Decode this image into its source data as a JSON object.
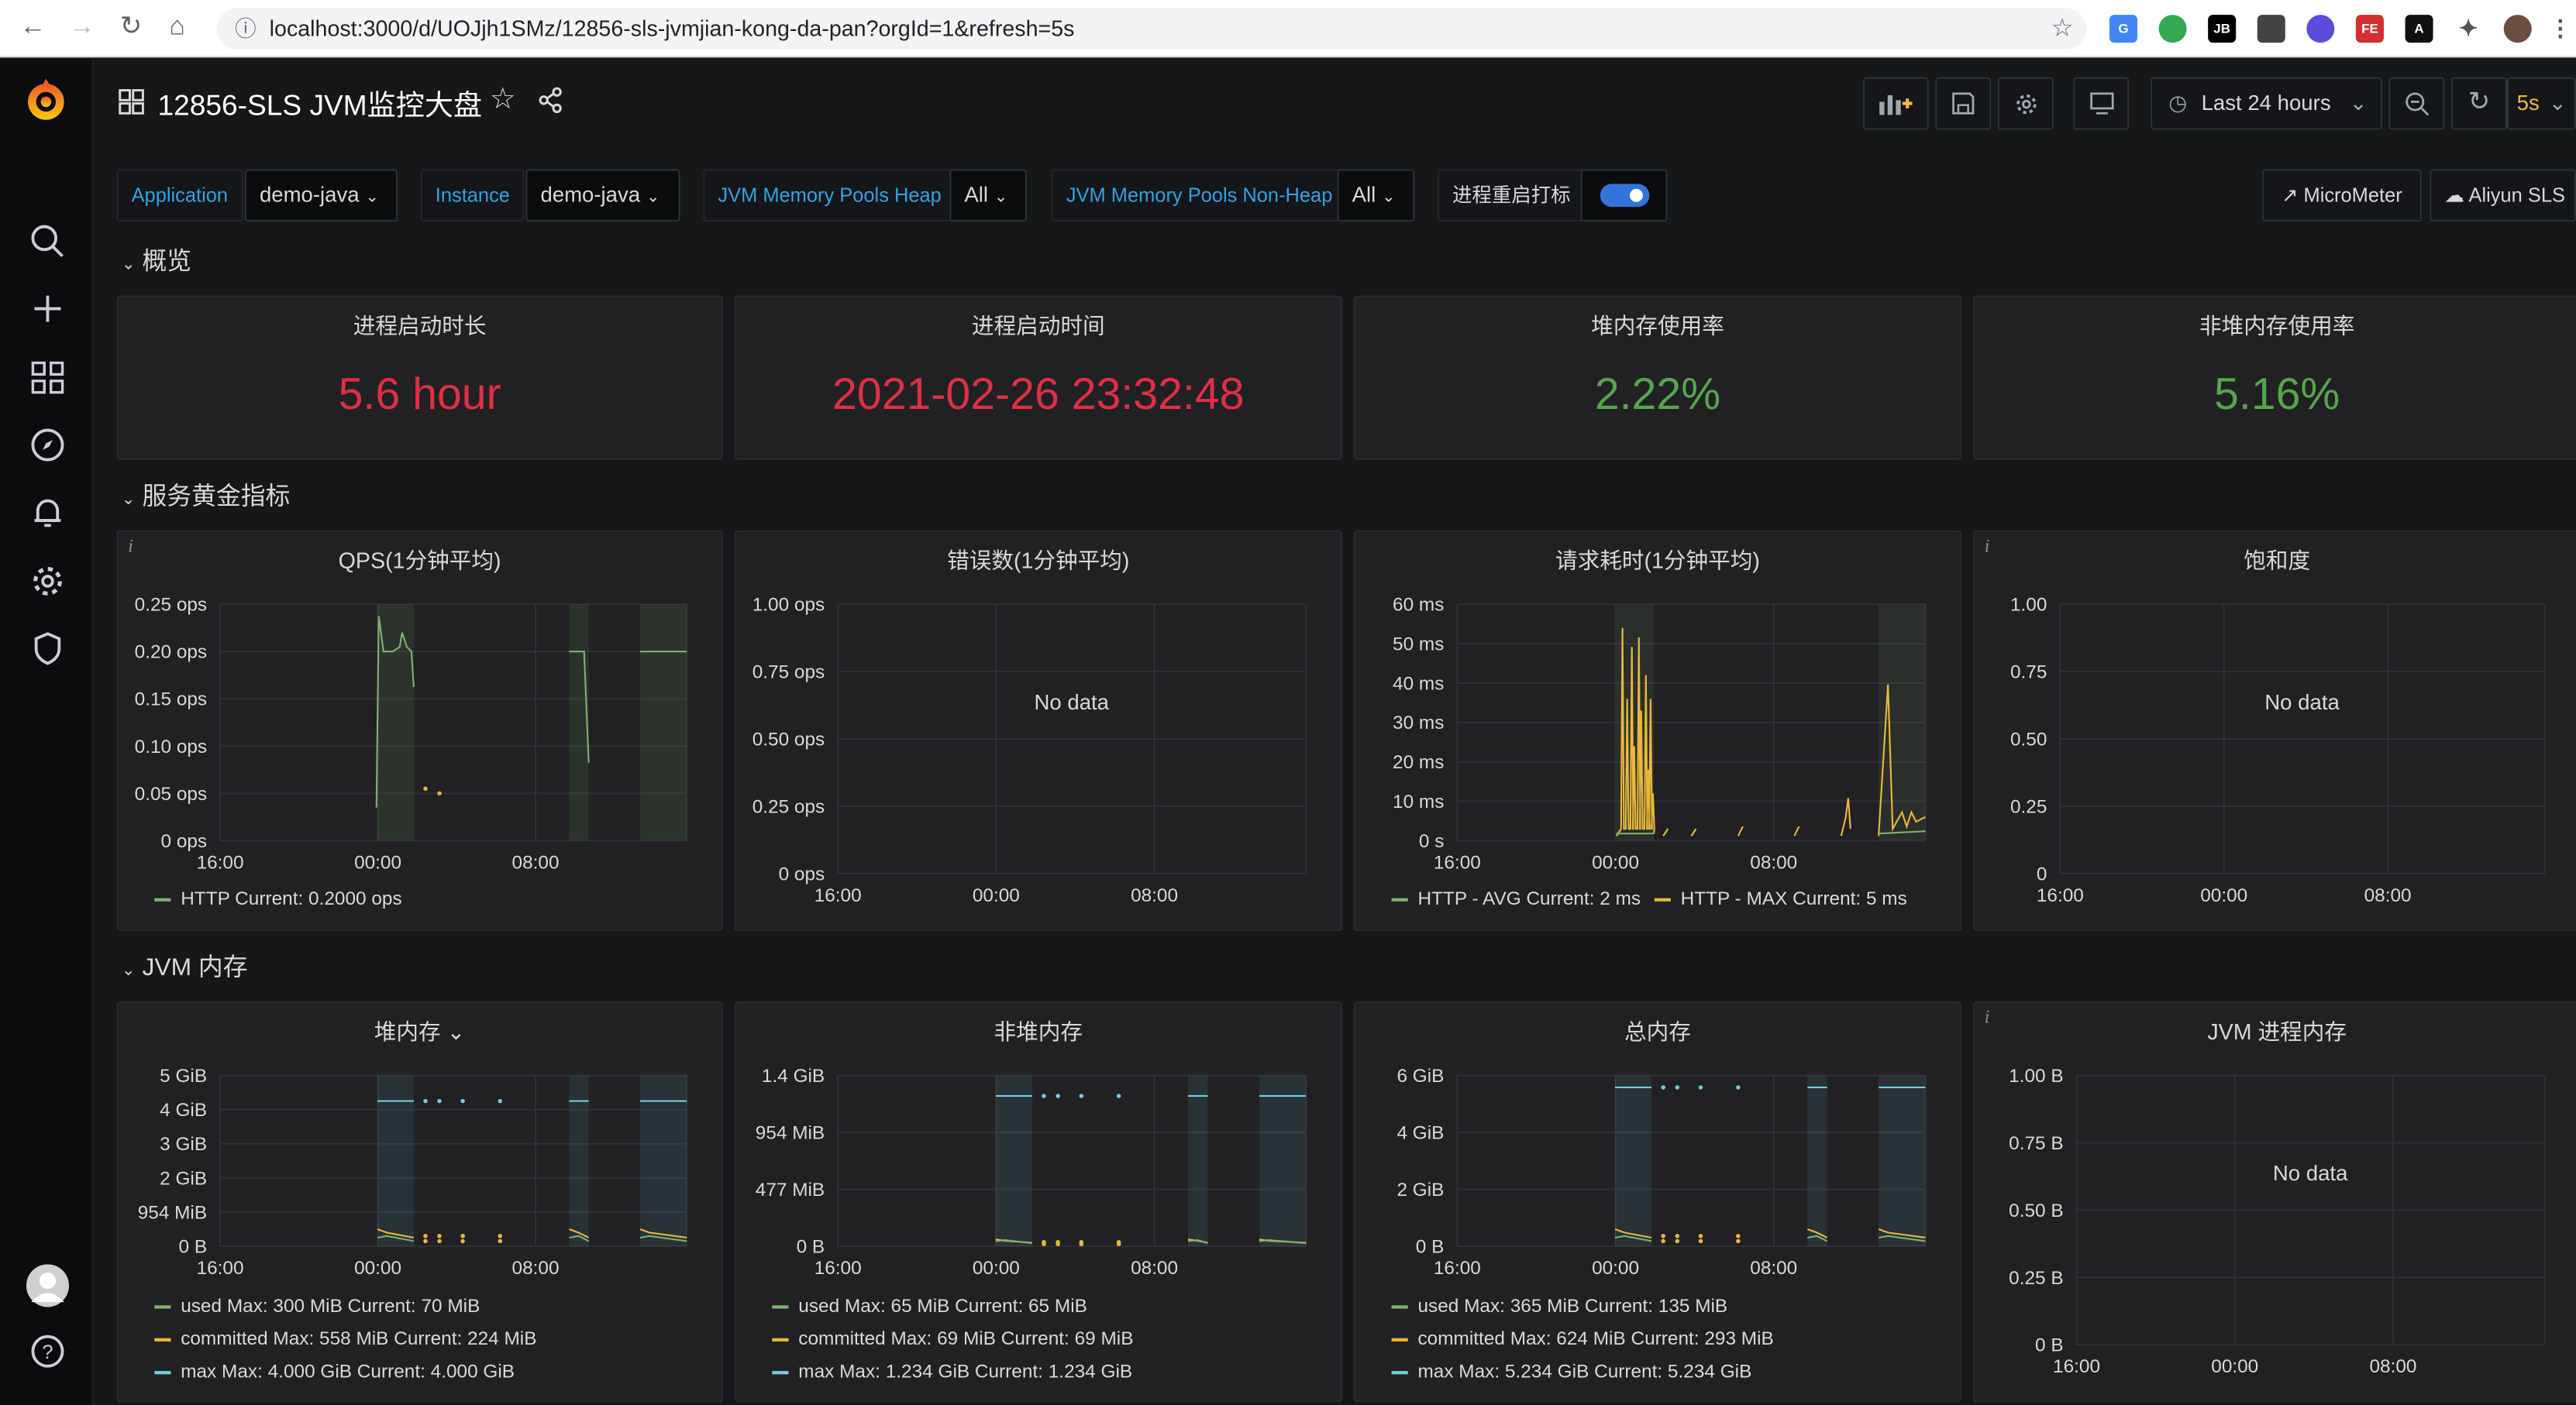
{
  "browser": {
    "url": "localhost:3000/d/UOJjh1SMz/12856-sls-jvmjian-kong-da-pan?orgId=1&refresh=5s"
  },
  "dashboard": {
    "title": "12856-SLS JVM监控大盘",
    "time_range": "Last 24 hours",
    "refresh": "5s"
  },
  "variables": [
    {
      "label": "Application",
      "value": "demo-java"
    },
    {
      "label": "Instance",
      "value": "demo-java"
    },
    {
      "label": "JVM Memory Pools Heap",
      "value": "All"
    },
    {
      "label": "JVM Memory Pools Non-Heap",
      "value": "All"
    }
  ],
  "toggle_label": "进程重启打标",
  "links": [
    "MicroMeter",
    "Aliyun SLS"
  ],
  "rows": {
    "overview": "概览",
    "golden": "服务黄金指标",
    "jvm_mem": "JVM 内存"
  },
  "stats": [
    {
      "title": "进程启动时长",
      "value": "5.6 hour",
      "color": "#e02f44"
    },
    {
      "title": "进程启动时间",
      "value": "2021-02-26 23:32:48",
      "color": "#e02f44"
    },
    {
      "title": "堆内存使用率",
      "value": "2.22%",
      "color": "#56a64b"
    },
    {
      "title": "非堆内存使用率",
      "value": "5.16%",
      "color": "#56a64b"
    }
  ],
  "no_data_text": "No data",
  "colors": {
    "green": "#7eb26d",
    "yellow": "#eab839",
    "cyan": "#6ed0e0",
    "red": "#e02f44"
  },
  "chart_data": [
    {
      "type": "line",
      "title": "QPS(1分钟平均)",
      "yticks": [
        "0.25 ops",
        "0.20 ops",
        "0.15 ops",
        "0.10 ops",
        "0.05 ops",
        "0 ops"
      ],
      "xticks": [
        "16:00",
        "00:00",
        "08:00"
      ],
      "series": [
        {
          "name": "HTTP",
          "color": "#7eb26d"
        }
      ],
      "legend": [
        {
          "text": "HTTP  Current: 0.2000 ops",
          "color": "#7eb26d"
        }
      ]
    },
    {
      "type": "line",
      "title": "错误数(1分钟平均)",
      "yticks": [
        "1.00 ops",
        "0.75 ops",
        "0.50 ops",
        "0.25 ops",
        "0 ops"
      ],
      "xticks": [
        "16:00",
        "00:00",
        "08:00"
      ],
      "nodata": true,
      "legend": []
    },
    {
      "type": "line",
      "title": "请求耗时(1分钟平均)",
      "yticks": [
        "60 ms",
        "50 ms",
        "40 ms",
        "30 ms",
        "20 ms",
        "10 ms",
        "0 s"
      ],
      "xticks": [
        "16:00",
        "00:00",
        "08:00"
      ],
      "series": [
        {
          "name": "HTTP - AVG",
          "color": "#7eb26d"
        },
        {
          "name": "HTTP - MAX",
          "color": "#eab839"
        }
      ],
      "legend": [
        {
          "text": "HTTP - AVG  Current: 2 ms",
          "color": "#7eb26d"
        },
        {
          "text": "HTTP - MAX  Current: 5 ms",
          "color": "#eab839"
        }
      ]
    },
    {
      "type": "line",
      "title": "饱和度",
      "yticks": [
        "1.00",
        "0.75",
        "0.50",
        "0.25",
        "0"
      ],
      "xticks": [
        "16:00",
        "00:00",
        "08:00"
      ],
      "nodata": true,
      "legend": []
    },
    {
      "type": "area",
      "title": "堆内存",
      "yticks": [
        "5 GiB",
        "4 GiB",
        "3 GiB",
        "2 GiB",
        "954 MiB",
        "0 B"
      ],
      "xticks": [
        "16:00",
        "00:00",
        "08:00"
      ],
      "legend": [
        {
          "text": "used  Max: 300 MiB  Current: 70 MiB",
          "color": "#7eb26d"
        },
        {
          "text": "committed  Max: 558 MiB  Current: 224 MiB",
          "color": "#eab839"
        },
        {
          "text": "max  Max: 4.000 GiB  Current: 4.000 GiB",
          "color": "#6ed0e0"
        }
      ]
    },
    {
      "type": "area",
      "title": "非堆内存",
      "yticks": [
        "1.4 GiB",
        "954 MiB",
        "477 MiB",
        "0 B"
      ],
      "xticks": [
        "16:00",
        "00:00",
        "08:00"
      ],
      "legend": [
        {
          "text": "used  Max: 65 MiB  Current: 65 MiB",
          "color": "#7eb26d"
        },
        {
          "text": "committed  Max: 69 MiB  Current: 69 MiB",
          "color": "#eab839"
        },
        {
          "text": "max  Max: 1.234 GiB  Current: 1.234 GiB",
          "color": "#6ed0e0"
        }
      ]
    },
    {
      "type": "area",
      "title": "总内存",
      "yticks": [
        "6 GiB",
        "4 GiB",
        "2 GiB",
        "0 B"
      ],
      "xticks": [
        "16:00",
        "00:00",
        "08:00"
      ],
      "legend": [
        {
          "text": "used  Max: 365 MiB  Current: 135 MiB",
          "color": "#7eb26d"
        },
        {
          "text": "committed  Max: 624 MiB  Current: 293 MiB",
          "color": "#eab839"
        },
        {
          "text": "max  Max: 5.234 GiB  Current: 5.234 GiB",
          "color": "#6ed0e0"
        }
      ]
    },
    {
      "type": "line",
      "title": "JVM 进程内存",
      "yticks": [
        "1.00 B",
        "0.75 B",
        "0.50 B",
        "0.25 B",
        "0 B"
      ],
      "xticks": [
        "16:00",
        "00:00",
        "08:00"
      ],
      "nodata": true,
      "legend": []
    }
  ]
}
